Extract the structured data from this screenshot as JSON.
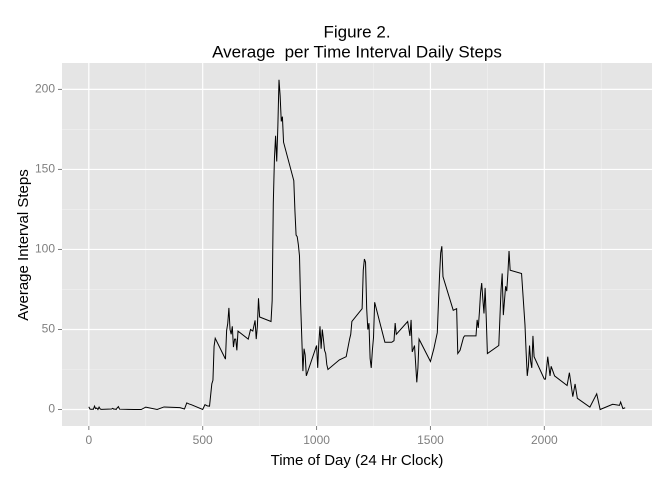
{
  "chart_data": {
    "type": "line",
    "title": "Figure 2.",
    "subtitle": "Average  per Time Interval Daily Steps",
    "x_label": "Time of Day (24 Hr Clock)",
    "y_label": "Average Interval Steps",
    "xlim": [
      -117.75,
      2472.75
    ],
    "ylim": [
      -10.3,
      216.5
    ],
    "xticks": [
      0,
      500,
      1000,
      1500,
      2000
    ],
    "yticks": [
      0,
      50,
      100,
      150,
      200
    ],
    "grid": true,
    "series": [
      {
        "color": "#000000",
        "x": [
          0,
          5,
          10,
          15,
          20,
          25,
          30,
          35,
          40,
          45,
          50,
          55,
          100,
          105,
          110,
          115,
          120,
          125,
          130,
          135,
          200,
          230,
          250,
          300,
          330,
          400,
          420,
          430,
          440,
          450,
          500,
          510,
          520,
          530,
          540,
          545,
          550,
          555,
          600,
          605,
          610,
          615,
          620,
          625,
          630,
          635,
          640,
          645,
          650,
          655,
          700,
          710,
          720,
          730,
          735,
          740,
          745,
          750,
          800,
          805,
          810,
          815,
          820,
          825,
          830,
          835,
          840,
          845,
          850,
          855,
          900,
          905,
          910,
          915,
          920,
          925,
          930,
          935,
          940,
          945,
          950,
          955,
          1000,
          1005,
          1010,
          1015,
          1020,
          1025,
          1030,
          1035,
          1040,
          1045,
          1050,
          1100,
          1130,
          1145,
          1150,
          1155,
          1200,
          1205,
          1210,
          1215,
          1220,
          1225,
          1230,
          1235,
          1240,
          1245,
          1250,
          1255,
          1300,
          1330,
          1340,
          1345,
          1350,
          1400,
          1410,
          1415,
          1420,
          1430,
          1440,
          1445,
          1450,
          1500,
          1515,
          1530,
          1540,
          1545,
          1550,
          1555,
          1600,
          1615,
          1620,
          1630,
          1645,
          1650,
          1700,
          1705,
          1710,
          1715,
          1720,
          1725,
          1730,
          1735,
          1740,
          1745,
          1750,
          1800,
          1810,
          1815,
          1820,
          1825,
          1830,
          1835,
          1840,
          1845,
          1850,
          1900,
          1915,
          1920,
          1925,
          1930,
          1935,
          1940,
          1945,
          1950,
          1955,
          2000,
          2005,
          2015,
          2020,
          2025,
          2030,
          2045,
          2100,
          2110,
          2115,
          2125,
          2135,
          2145,
          2200,
          2230,
          2245,
          2300,
          2330,
          2335,
          2345,
          2355
        ],
        "values": [
          1.7,
          0.3,
          0.1,
          0.2,
          0.1,
          2.1,
          0.5,
          0.9,
          0,
          1.5,
          0.3,
          0.1,
          0.3,
          0.7,
          0.2,
          0.3,
          0,
          1.1,
          1.8,
          0.2,
          0,
          0,
          1.5,
          0,
          1.6,
          1.2,
          0.3,
          4.1,
          3.5,
          3,
          0,
          3,
          2.3,
          2.1,
          16,
          18.3,
          39.5,
          44.5,
          31.5,
          49.3,
          53.8,
          63.5,
          50,
          47,
          52,
          39,
          44,
          44,
          37,
          49,
          44,
          50,
          49,
          55.7,
          44,
          52,
          69.5,
          57.8,
          55,
          68,
          129,
          157,
          171,
          155,
          177,
          206,
          196,
          180,
          183,
          167,
          143,
          124,
          109,
          108,
          103,
          96,
          66,
          45,
          24,
          38,
          34,
          21,
          40,
          26,
          42,
          52,
          38,
          50,
          44,
          37,
          35,
          28,
          25,
          31,
          33,
          44,
          47,
          55,
          63,
          87,
          94,
          92,
          63,
          50,
          54,
          32,
          26,
          37,
          45,
          67,
          42,
          42,
          43,
          54,
          47,
          55,
          46,
          56,
          36,
          40,
          17,
          26,
          44,
          30,
          38,
          48,
          84,
          98,
          102,
          83,
          62,
          63,
          35,
          37,
          45,
          46,
          46,
          56,
          51,
          61,
          73,
          79,
          69,
          60,
          76,
          57,
          35,
          40,
          75,
          85,
          59,
          68,
          77,
          74,
          85,
          99,
          87,
          85,
          53,
          36,
          21,
          27,
          40,
          30,
          26,
          46,
          33,
          19,
          19,
          33,
          27,
          21,
          27,
          21,
          15,
          23,
          18,
          8,
          16,
          7,
          1.5,
          9.8,
          0,
          3.3,
          2.6,
          4.7,
          0.6,
          1.1
        ]
      }
    ]
  }
}
